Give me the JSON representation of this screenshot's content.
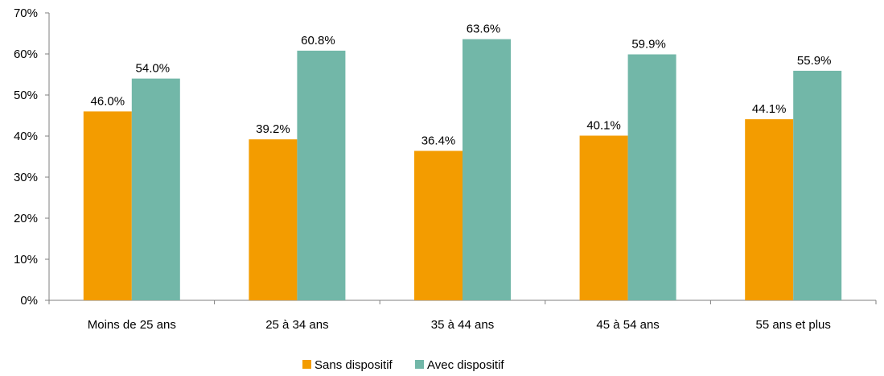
{
  "chart_data": {
    "type": "bar",
    "categories": [
      "Moins de 25 ans",
      "25 à 34 ans",
      "35 à 44 ans",
      "45 à 54 ans",
      "55 ans et plus"
    ],
    "series": [
      {
        "name": "Sans dispositif",
        "color": "#F39C00",
        "values": [
          46.0,
          39.2,
          36.4,
          40.1,
          44.1
        ],
        "labels": [
          "46.0%",
          "39.2%",
          "36.4%",
          "40.1%",
          "44.1%"
        ]
      },
      {
        "name": "Avec dispositif",
        "color": "#72B7A8",
        "values": [
          54.0,
          60.8,
          63.6,
          59.9,
          55.9
        ],
        "labels": [
          "54.0%",
          "60.8%",
          "63.6%",
          "59.9%",
          "55.9%"
        ]
      }
    ],
    "ylim": [
      0,
      70
    ],
    "yticks": [
      0,
      10,
      20,
      30,
      40,
      50,
      60,
      70
    ],
    "ytick_labels": [
      "0%",
      "10%",
      "20%",
      "30%",
      "40%",
      "50%",
      "60%",
      "70%"
    ],
    "grid": false,
    "legend_position": "bottom"
  }
}
